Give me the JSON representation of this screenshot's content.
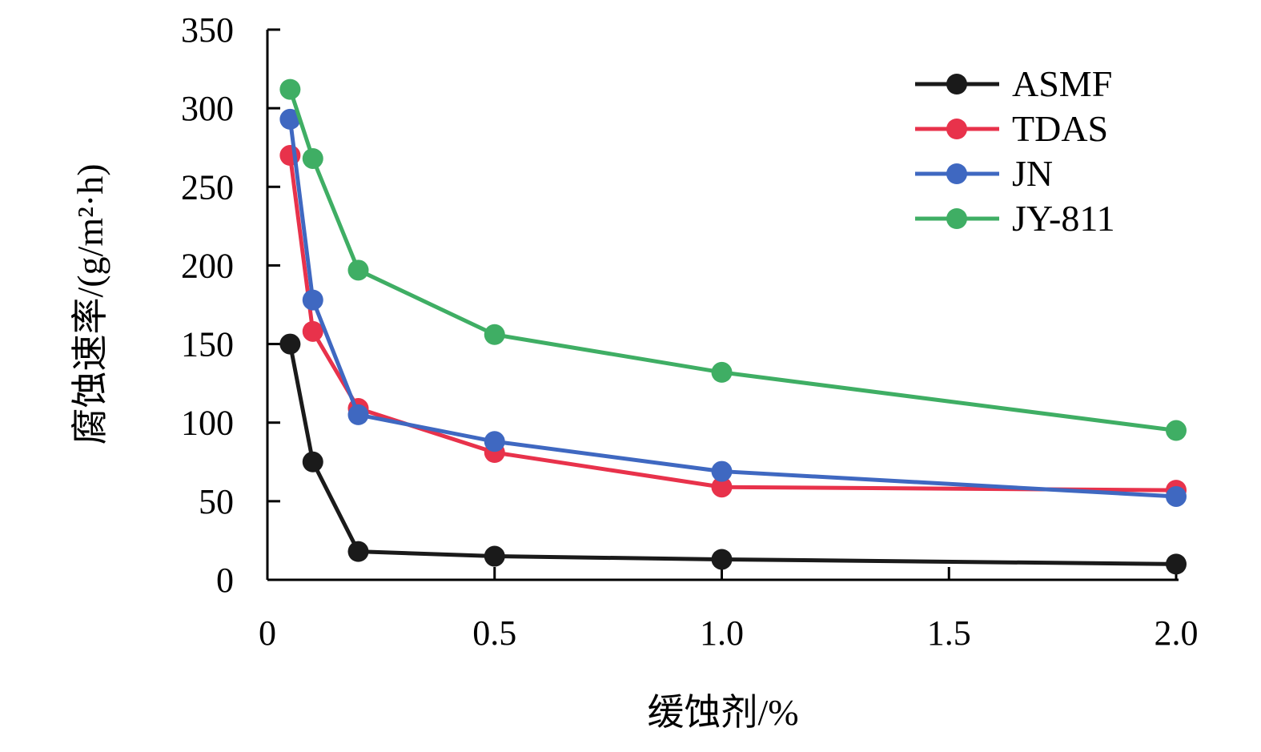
{
  "chart_data": {
    "type": "line",
    "xlabel": "缓蚀剂/%",
    "ylabel": "腐蚀速率/(g/m²·h)",
    "xlim": [
      0,
      2.0
    ],
    "ylim": [
      0,
      350
    ],
    "x_ticks": [
      "0",
      "0.5",
      "1.0",
      "1.5",
      "2.0"
    ],
    "y_ticks": [
      "0",
      "50",
      "100",
      "150",
      "200",
      "250",
      "300",
      "350"
    ],
    "grid": false,
    "legend_position": "top-right",
    "x": [
      0.05,
      0.1,
      0.2,
      0.5,
      1.0,
      2.0
    ],
    "series": [
      {
        "name": "ASMF",
        "color": "#1a1a1a",
        "values": [
          150,
          75,
          18,
          15,
          13,
          10
        ]
      },
      {
        "name": "TDAS",
        "color": "#e8324b",
        "values": [
          270,
          158,
          109,
          81,
          59,
          57
        ]
      },
      {
        "name": "JN",
        "color": "#3f68c1",
        "values": [
          293,
          178,
          105,
          88,
          69,
          53
        ]
      },
      {
        "name": "JY-811",
        "color": "#3fae64",
        "values": [
          312,
          268,
          197,
          156,
          132,
          95
        ]
      }
    ]
  }
}
